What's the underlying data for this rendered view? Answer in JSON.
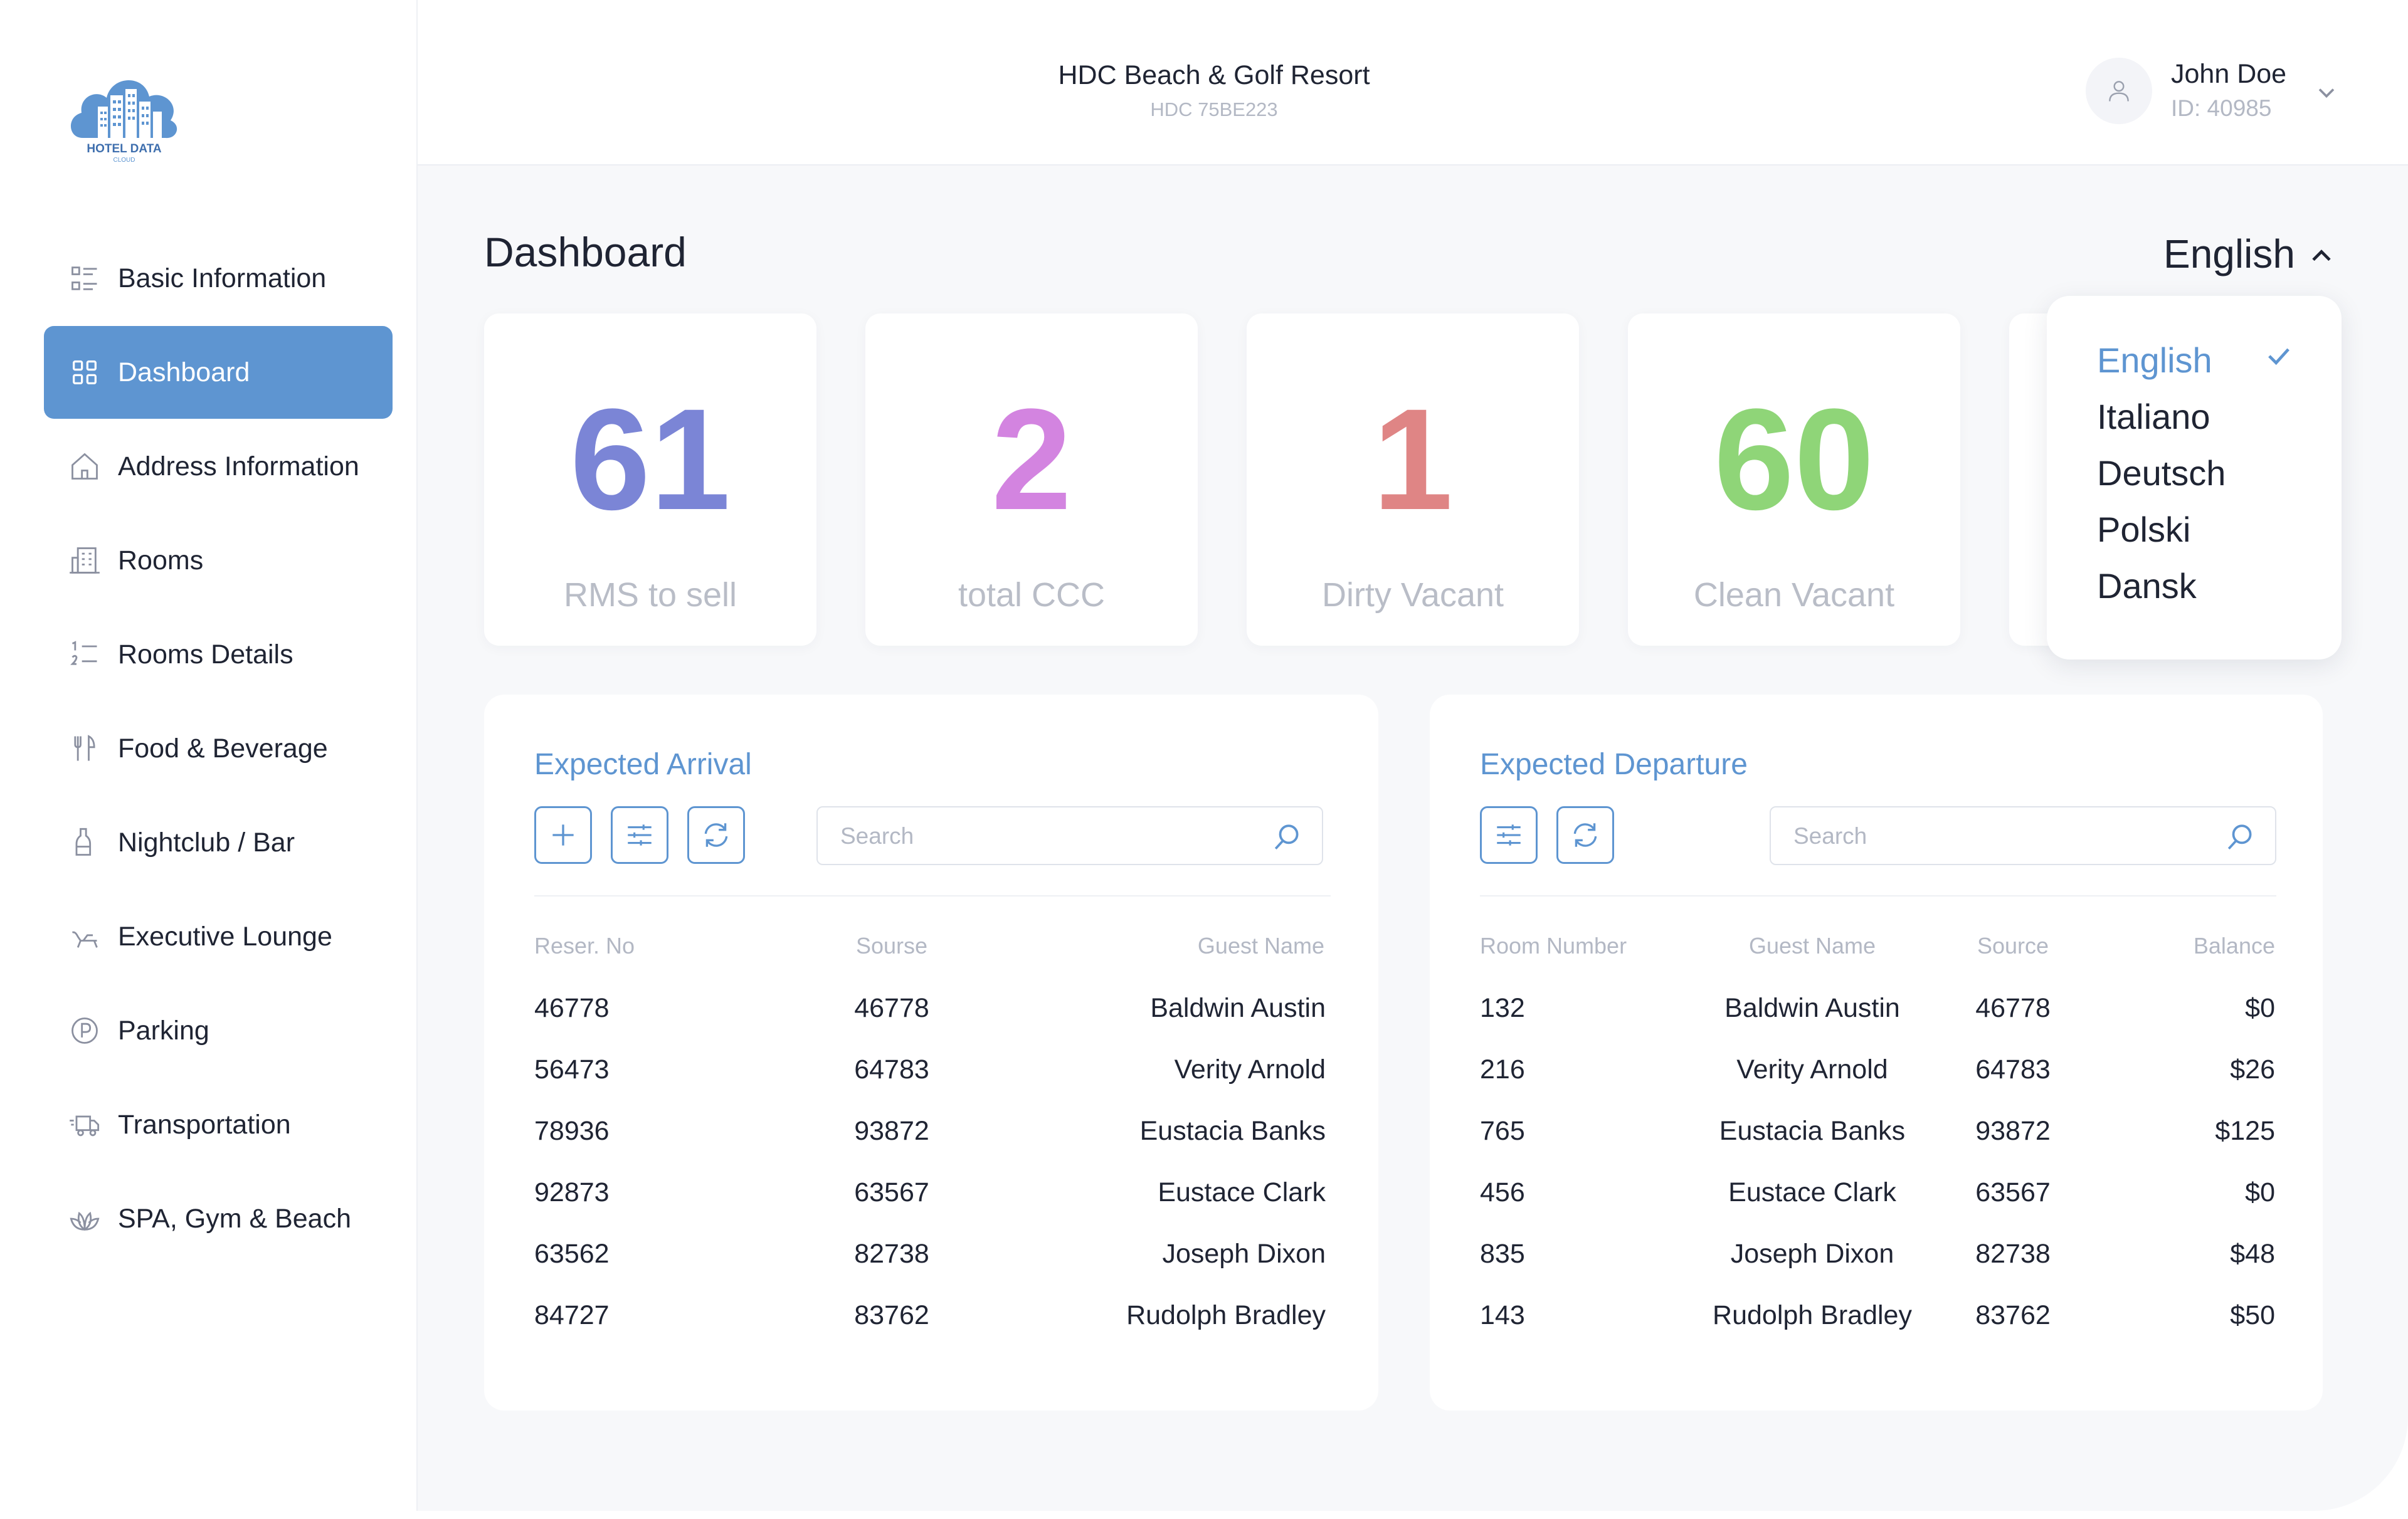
{
  "brand": {
    "logo_text": "HOTEL DATA",
    "logo_subtext": "CLOUD"
  },
  "sidebar": {
    "items": [
      {
        "label": "Basic Information",
        "icon": "list-icon"
      },
      {
        "label": "Dashboard",
        "icon": "grid-icon",
        "active": true
      },
      {
        "label": "Address Information",
        "icon": "home-icon"
      },
      {
        "label": "Rooms",
        "icon": "building-icon"
      },
      {
        "label": "Rooms Details",
        "icon": "numbered-list-icon"
      },
      {
        "label": "Food & Beverage",
        "icon": "fork-knife-icon"
      },
      {
        "label": "Nightclub / Bar",
        "icon": "wine-glass-icon"
      },
      {
        "label": "Executive Lounge",
        "icon": "lounge-chair-icon"
      },
      {
        "label": "Parking",
        "icon": "parking-icon"
      },
      {
        "label": "Transportation",
        "icon": "truck-icon"
      },
      {
        "label": "SPA, Gym & Beach",
        "icon": "lotus-icon"
      }
    ]
  },
  "header": {
    "hotel_name": "HDC Beach & Golf Resort",
    "hotel_code": "HDC 75BE223",
    "user_name": "John Doe",
    "user_id": "ID: 40985"
  },
  "main": {
    "title": "Dashboard",
    "language": {
      "current": "English",
      "options": [
        "English",
        "Italiano",
        "Deutsch",
        "Polski",
        "Dansk"
      ],
      "selected": "English"
    },
    "stats": [
      {
        "value": "61",
        "label": "RMS to sell",
        "color": "#7b85d6"
      },
      {
        "value": "2",
        "label": "total CCC",
        "color": "#d384e0"
      },
      {
        "value": "1",
        "label": "Dirty Vacant",
        "color": "#df8585"
      },
      {
        "value": "60",
        "label": "Clean Vacant",
        "color": "#8fd578"
      }
    ]
  },
  "arrival": {
    "title": "Expected Arrival",
    "search_placeholder": "Search",
    "columns": [
      "Reser. No",
      "Sourse",
      "Guest Name"
    ],
    "rows": [
      [
        "46778",
        "46778",
        "Baldwin Austin"
      ],
      [
        "56473",
        "64783",
        "Verity Arnold"
      ],
      [
        "78936",
        "93872",
        "Eustacia Banks"
      ],
      [
        "92873",
        "63567",
        "Eustace Clark"
      ],
      [
        "63562",
        "82738",
        "Joseph Dixon"
      ],
      [
        "84727",
        "83762",
        "Rudolph Bradley"
      ]
    ]
  },
  "departure": {
    "title": "Expected Departure",
    "search_placeholder": "Search",
    "columns": [
      "Room Number",
      "Guest Name",
      "Source",
      "Balance"
    ],
    "rows": [
      [
        "132",
        "Baldwin Austin",
        "46778",
        "$0"
      ],
      [
        "216",
        "Verity Arnold",
        "64783",
        "$26"
      ],
      [
        "765",
        "Eustacia Banks",
        "93872",
        "$125"
      ],
      [
        "456",
        "Eustace Clark",
        "63567",
        "$0"
      ],
      [
        "835",
        "Joseph Dixon",
        "82738",
        "$48"
      ],
      [
        "143",
        "Rudolph Bradley",
        "83762",
        "$50"
      ]
    ]
  },
  "colors": {
    "accent": "#5e95d1",
    "text": "#1f2433",
    "muted": "#b3b8c4",
    "background": "#f7f8fa"
  }
}
